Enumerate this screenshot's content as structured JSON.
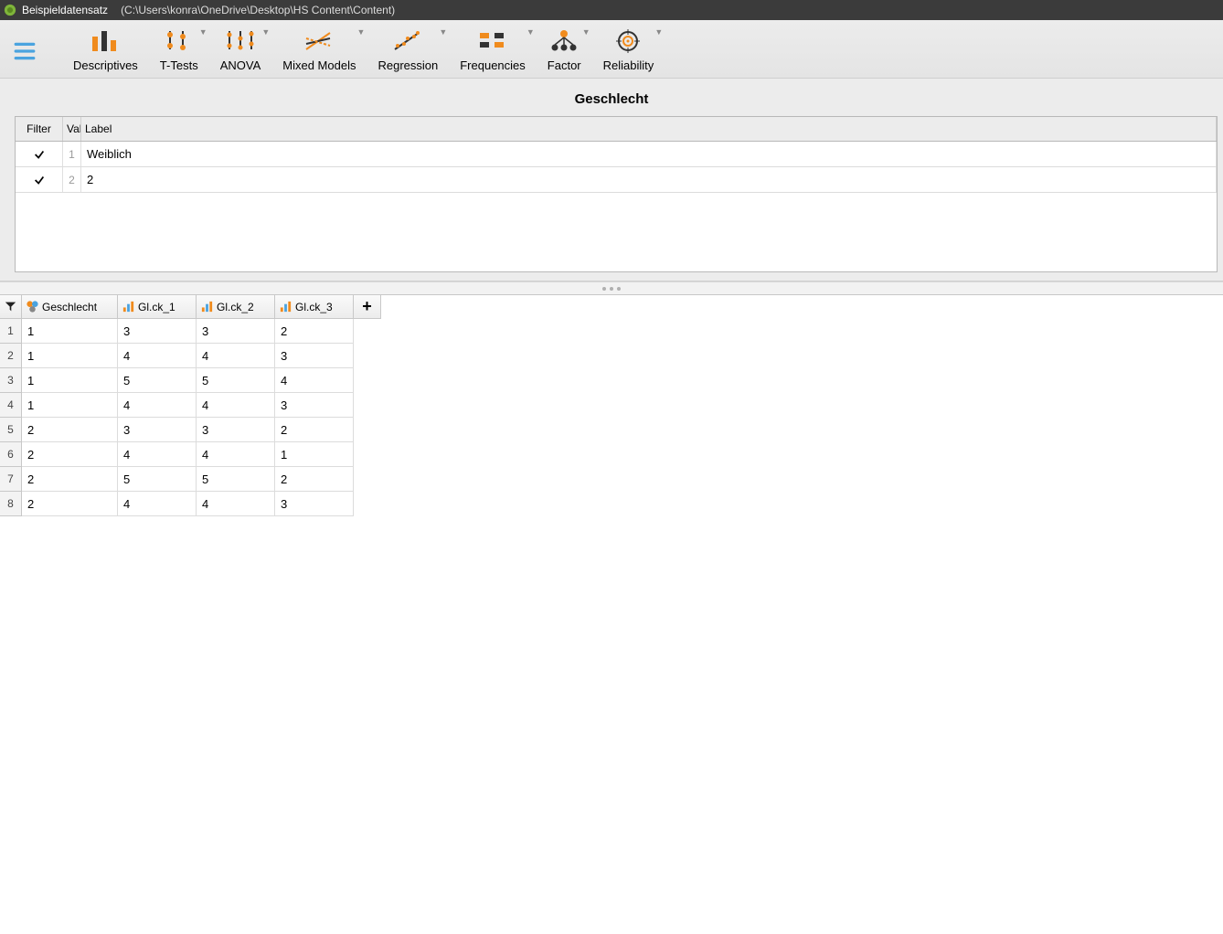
{
  "titlebar": {
    "dataset_name": "Beispieldatensatz",
    "file_path": "(C:\\Users\\konra\\OneDrive\\Desktop\\HS Content\\Content)"
  },
  "ribbon": {
    "items": [
      {
        "label": "Descriptives",
        "icon": "descriptives",
        "dropdown": false
      },
      {
        "label": "T-Tests",
        "icon": "ttests",
        "dropdown": true
      },
      {
        "label": "ANOVA",
        "icon": "anova",
        "dropdown": true
      },
      {
        "label": "Mixed Models",
        "icon": "mixed",
        "dropdown": true
      },
      {
        "label": "Regression",
        "icon": "regression",
        "dropdown": true
      },
      {
        "label": "Frequencies",
        "icon": "frequencies",
        "dropdown": true
      },
      {
        "label": "Factor",
        "icon": "factor",
        "dropdown": true
      },
      {
        "label": "Reliability",
        "icon": "reliability",
        "dropdown": true
      }
    ]
  },
  "variable_panel": {
    "title": "Geschlecht",
    "headers": {
      "filter": "Filter",
      "value": "Value",
      "label": "Label"
    },
    "rows": [
      {
        "checked": true,
        "value": "1",
        "label": "Weiblich"
      },
      {
        "checked": true,
        "value": "2",
        "label": "2"
      }
    ]
  },
  "data_grid": {
    "columns": [
      {
        "name": "Geschlecht",
        "icon": "nominal"
      },
      {
        "name": "Gl.ck_1",
        "icon": "scale"
      },
      {
        "name": "Gl.ck_2",
        "icon": "scale"
      },
      {
        "name": "Gl.ck_3",
        "icon": "scale"
      }
    ],
    "rows": [
      [
        "1",
        "3",
        "3",
        "2"
      ],
      [
        "1",
        "4",
        "4",
        "3"
      ],
      [
        "1",
        "5",
        "5",
        "4"
      ],
      [
        "1",
        "4",
        "4",
        "3"
      ],
      [
        "2",
        "3",
        "3",
        "2"
      ],
      [
        "2",
        "4",
        "4",
        "1"
      ],
      [
        "2",
        "5",
        "5",
        "2"
      ],
      [
        "2",
        "4",
        "4",
        "3"
      ]
    ],
    "add_glyph": "+"
  },
  "colors": {
    "accent": "#f08b1d",
    "accent2": "#4aa3df",
    "titlebar_bg": "#3b3b3b"
  }
}
